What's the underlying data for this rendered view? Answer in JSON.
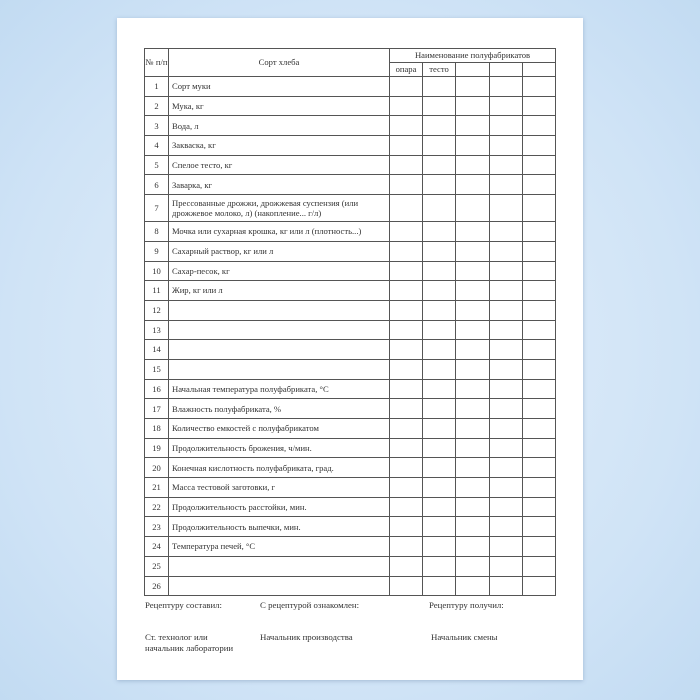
{
  "header": {
    "num": "№ п/п",
    "sort": "Сорт хлеба",
    "semi": "Наименование полуфабрикатов",
    "sub": [
      "опара",
      "тесто",
      "",
      "",
      ""
    ]
  },
  "rows": [
    {
      "n": "1",
      "label": "Сорт муки"
    },
    {
      "n": "2",
      "label": "Мука, кг"
    },
    {
      "n": "3",
      "label": "Вода, л"
    },
    {
      "n": "4",
      "label": "Закваска, кг"
    },
    {
      "n": "5",
      "label": "Спелое тесто, кг"
    },
    {
      "n": "6",
      "label": "Заварка, кг"
    },
    {
      "n": "7",
      "label": "Прессованные дрожжи, дрожжевая суспензия (или дрожжевое молоко, л) (накопление... г/л)"
    },
    {
      "n": "8",
      "label": "Мочка или сухарная крошка, кг или л (плотность...)"
    },
    {
      "n": "9",
      "label": "Сахарный раствор, кг или л"
    },
    {
      "n": "10",
      "label": "Сахар-песок, кг"
    },
    {
      "n": "11",
      "label": "Жир, кг или л"
    },
    {
      "n": "12",
      "label": ""
    },
    {
      "n": "13",
      "label": ""
    },
    {
      "n": "14",
      "label": ""
    },
    {
      "n": "15",
      "label": ""
    },
    {
      "n": "16",
      "label": "Начальная температура полуфабриката, °С"
    },
    {
      "n": "17",
      "label": "Влажность полуфабриката, %"
    },
    {
      "n": "18",
      "label": "Количество емкостей с полуфабрикатом"
    },
    {
      "n": "19",
      "label": "Продолжительность брожения, ч/мин."
    },
    {
      "n": "20",
      "label": "Конечная кислотность полуфабриката, град."
    },
    {
      "n": "21",
      "label": "Масса тестовой заготовки, г"
    },
    {
      "n": "22",
      "label": "Продолжительность расстойки, мин."
    },
    {
      "n": "23",
      "label": "Продолжительность выпечки, мин."
    },
    {
      "n": "24",
      "label": "Температура печей, °С"
    },
    {
      "n": "25",
      "label": ""
    },
    {
      "n": "26",
      "label": ""
    }
  ],
  "footer": {
    "composed": "Рецептуру составил:",
    "acquainted": "С рецептурой ознакомлен:",
    "received": "Рецептуру получил:",
    "technologist": "Ст. технолог или начальник лаборатории",
    "production_head": "Начальник производства",
    "shift_head": "Начальник смены"
  }
}
